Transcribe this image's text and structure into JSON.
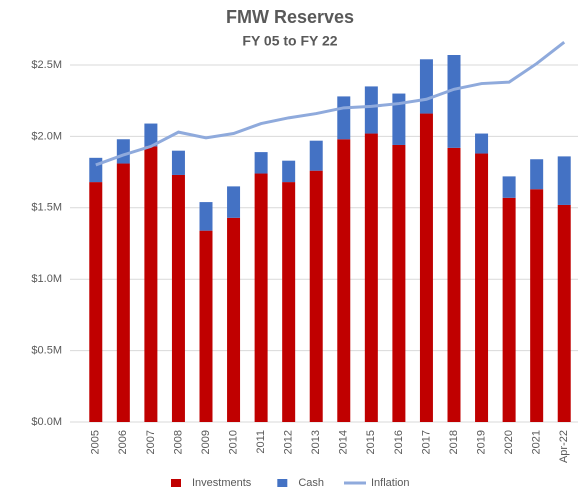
{
  "chart_data": {
    "type": "bar",
    "stacked": true,
    "title": "FMW Reserves",
    "subtitle": "FY 05 to FY 22",
    "categories": [
      "2005",
      "2006",
      "2007",
      "2008",
      "2009",
      "2010",
      "2011",
      "2012",
      "2013",
      "2014",
      "2015",
      "2016",
      "2017",
      "2018",
      "2019",
      "2020",
      "2021",
      "Apr-22"
    ],
    "series": [
      {
        "name": "Investments",
        "color": "#c00000",
        "values": [
          1680000,
          1810000,
          1930000,
          1730000,
          1340000,
          1430000,
          1740000,
          1680000,
          1760000,
          1980000,
          2020000,
          1940000,
          2160000,
          1920000,
          1880000,
          1570000,
          1630000,
          1520000
        ]
      },
      {
        "name": "Cash",
        "color": "#4472c4",
        "values": [
          170000,
          170000,
          160000,
          170000,
          200000,
          220000,
          150000,
          150000,
          210000,
          300000,
          330000,
          360000,
          380000,
          650000,
          140000,
          150000,
          210000,
          340000
        ]
      },
      {
        "name": "Inflation",
        "type": "line",
        "color": "#8faadc",
        "values": [
          1800000,
          1870000,
          1930000,
          2030000,
          1990000,
          2020000,
          2090000,
          2130000,
          2160000,
          2200000,
          2210000,
          2230000,
          2260000,
          2330000,
          2370000,
          2380000,
          2510000,
          2660000
        ]
      }
    ],
    "ylim": [
      0,
      2700000
    ],
    "yticks": [
      {
        "value": 0,
        "label": "$0.0M"
      },
      {
        "value": 500000,
        "label": "$0.5M"
      },
      {
        "value": 1000000,
        "label": "$1.0M"
      },
      {
        "value": 1500000,
        "label": "$1.5M"
      },
      {
        "value": 2000000,
        "label": "$2.0M"
      },
      {
        "value": 2500000,
        "label": "$2.5M"
      }
    ],
    "grid": true,
    "legend": "bottom"
  }
}
